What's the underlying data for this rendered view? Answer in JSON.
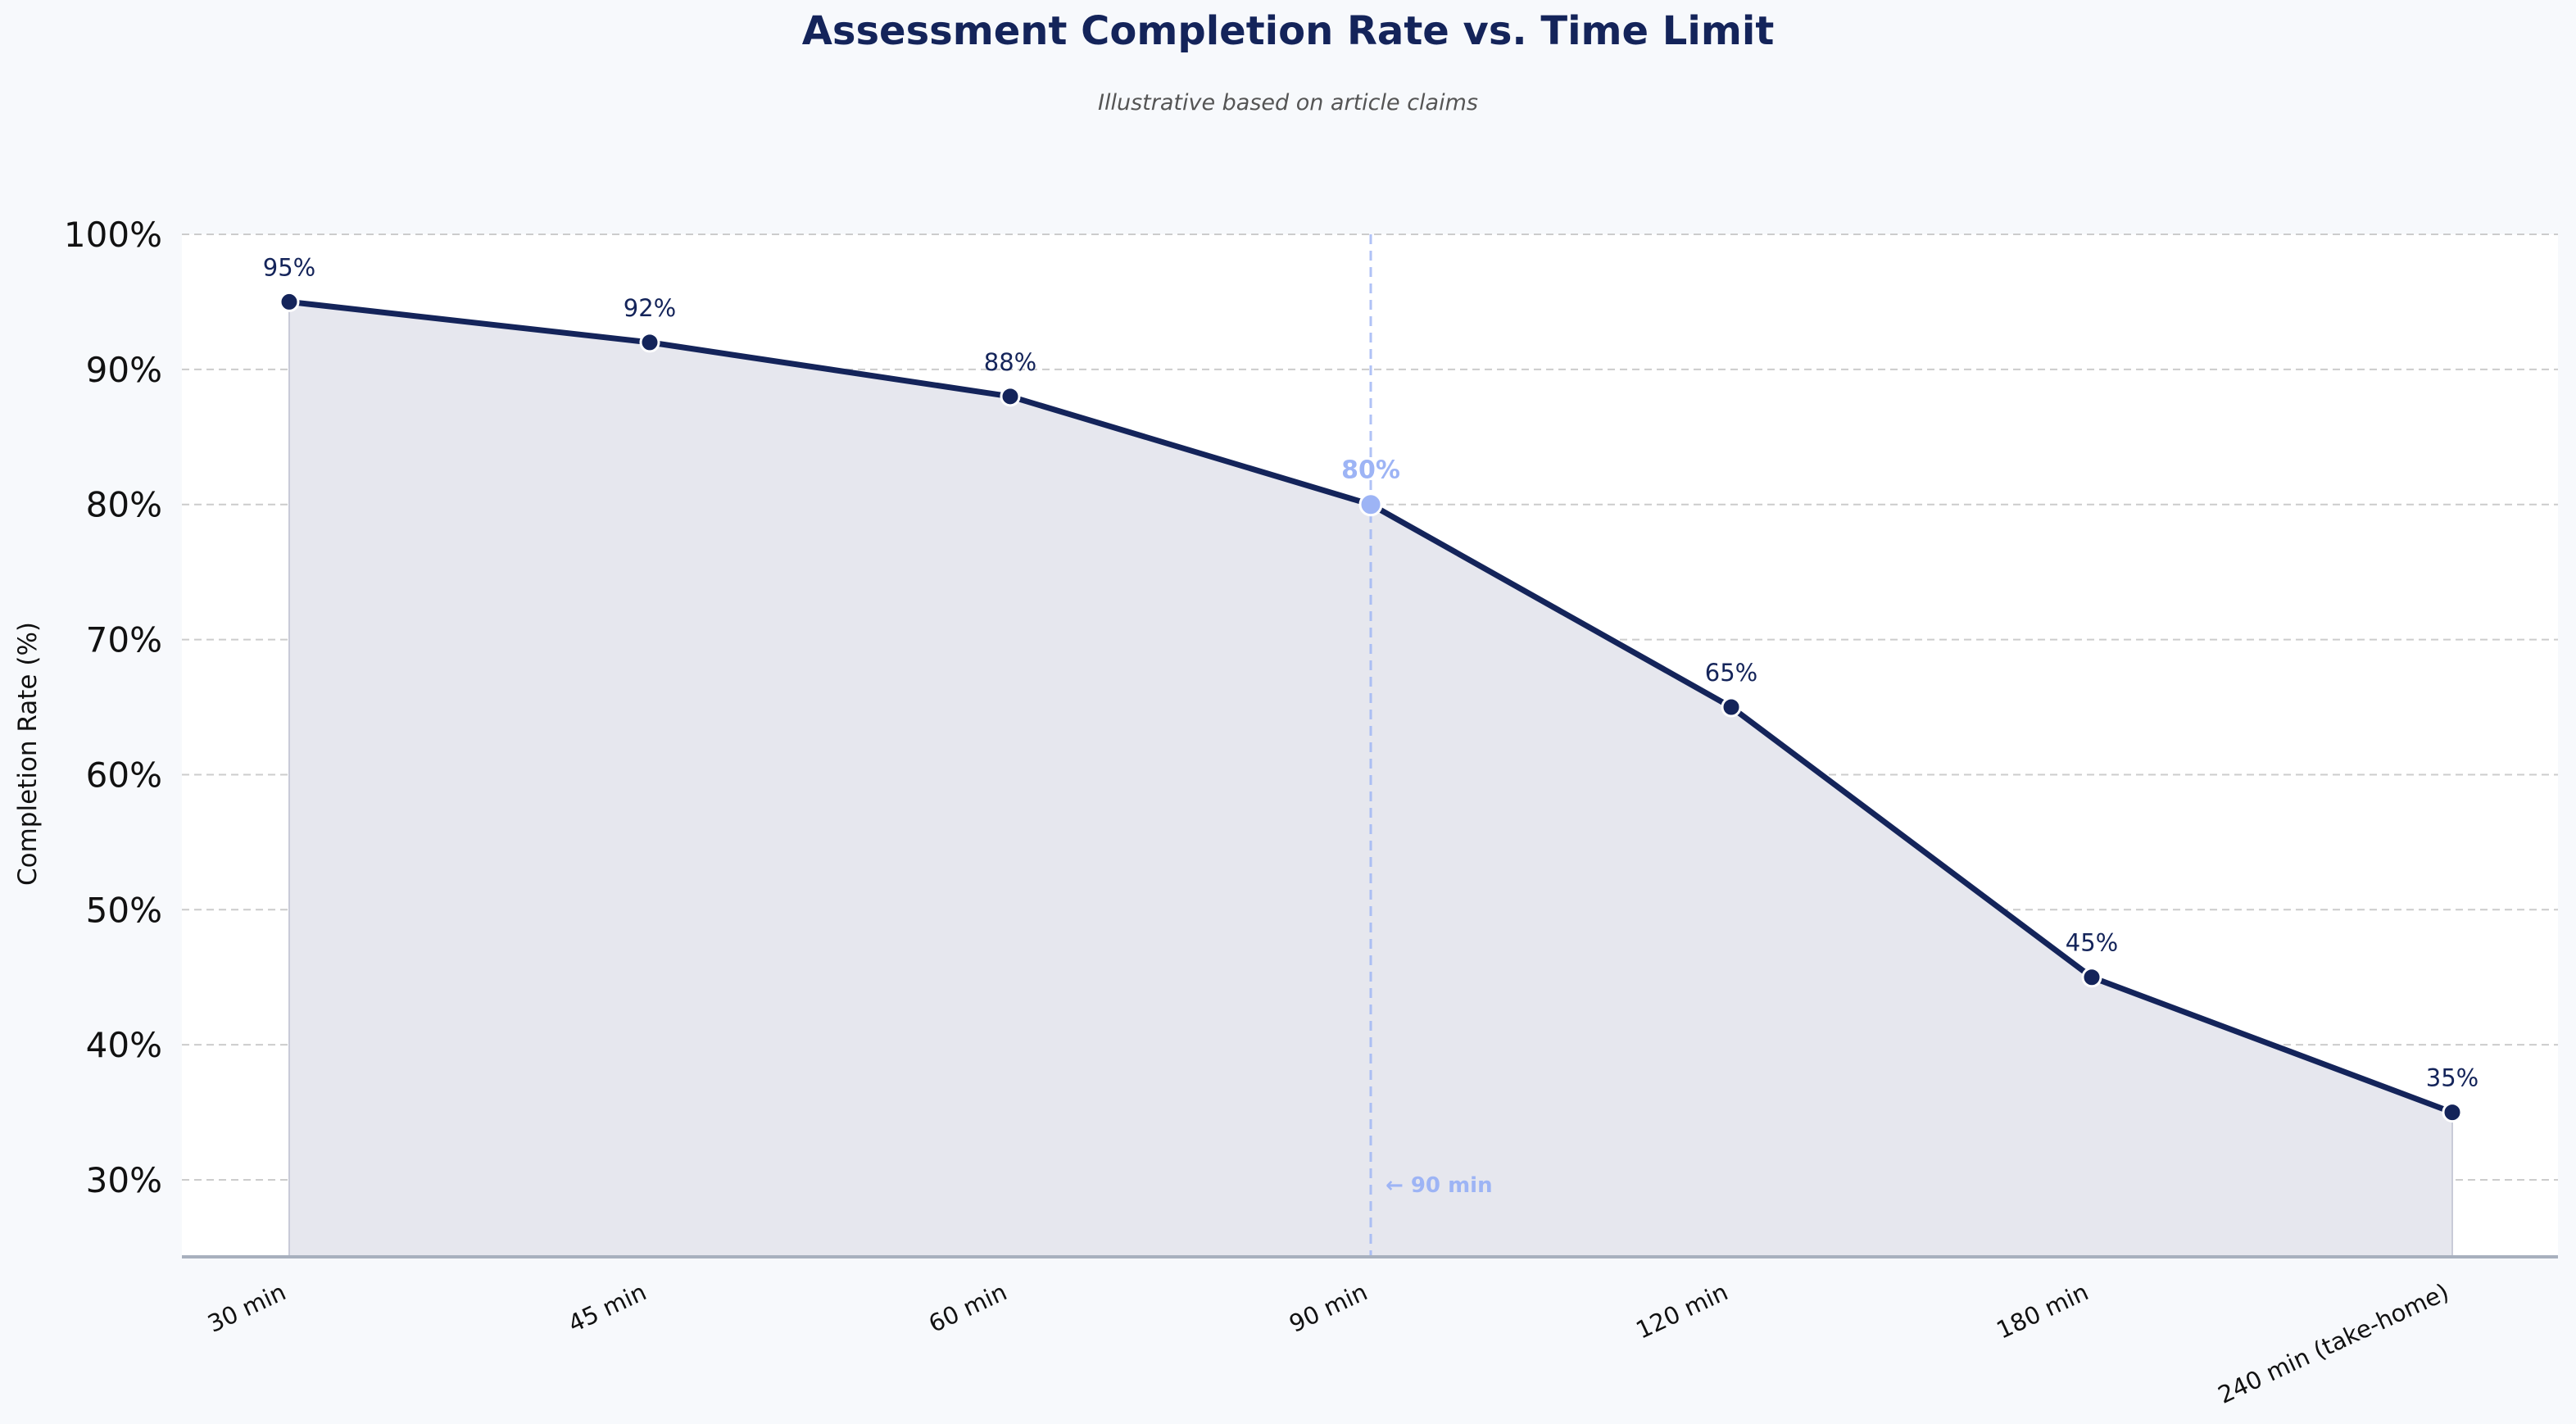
{
  "chart_data": {
    "type": "line",
    "title": "Assessment Completion Rate vs. Time Limit",
    "subtitle": "Illustrative based on article claims",
    "xlabel": "",
    "ylabel": "Completion Rate (%)",
    "categories": [
      "30 min",
      "45 min",
      "60 min",
      "90 min",
      "120 min",
      "180 min",
      "240 min (take-home)"
    ],
    "series": [
      {
        "values": [
          95,
          92,
          88,
          80,
          65,
          45,
          35
        ],
        "data_labels": [
          "95%",
          "92%",
          "88%",
          "80%",
          "65%",
          "45%",
          "35%"
        ]
      }
    ],
    "ylim": [
      24.3,
      100
    ],
    "yticks": [
      30,
      40,
      50,
      60,
      70,
      80,
      90,
      100
    ],
    "ytick_labels": [
      "30%",
      "40%",
      "50%",
      "60%",
      "70%",
      "80%",
      "90%",
      "100%"
    ],
    "grid": "horizontal dashed",
    "area_fill": true,
    "highlight": {
      "category_index": 3,
      "annotation": "← 90 min"
    },
    "colors": {
      "line": "#14245a",
      "marker": "#14245a",
      "highlight": "#9db4f5",
      "area": "#e6e7ee",
      "grid": "#cccccc",
      "figure_background": "#f7f9fc",
      "axes_background": "#ffffff"
    }
  }
}
